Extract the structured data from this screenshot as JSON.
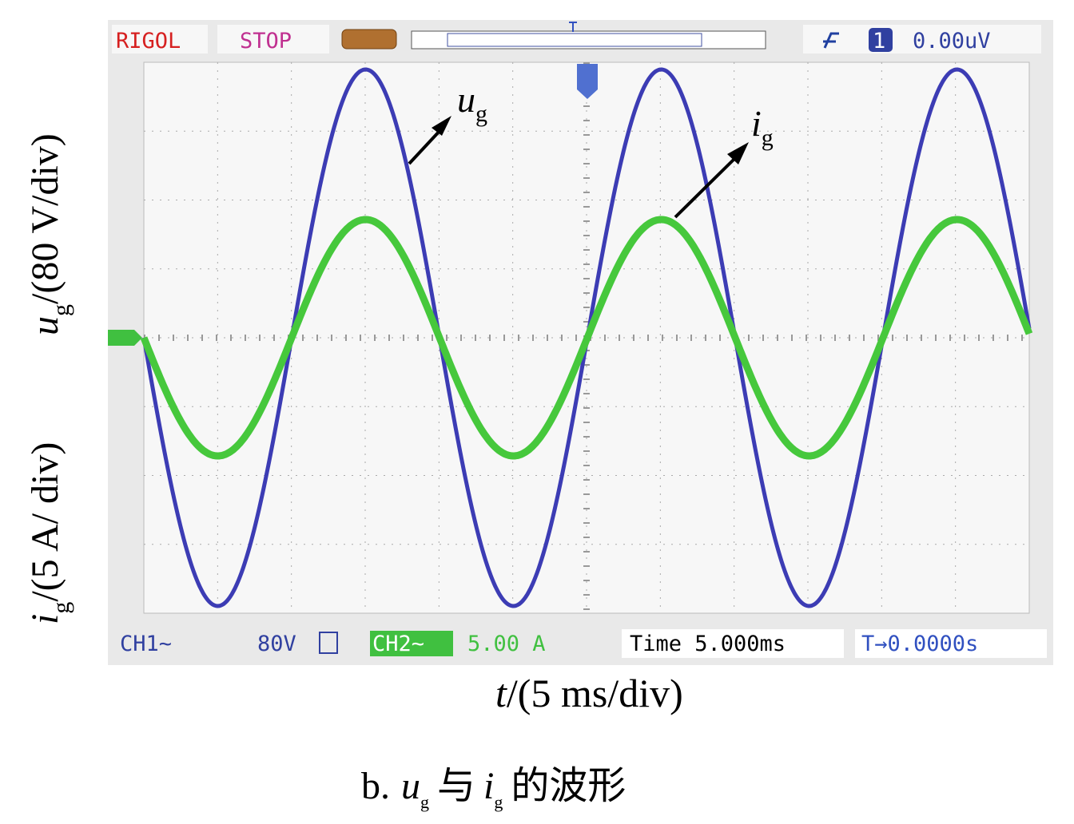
{
  "screen": {
    "header": {
      "brand": "RIGOL",
      "status": "STOP",
      "trigger_channel": "1",
      "trigger_level": "0.00uV"
    },
    "footer": {
      "ch1": "CH1~",
      "ch1_scale": "80V",
      "ch2": "CH2~",
      "ch2_scale": "5.00 A",
      "time": "Time 5.000ms",
      "offset": "T→0.0000s"
    },
    "annotations": [
      {
        "var": "u",
        "sub": "g"
      },
      {
        "var": "i",
        "sub": "g"
      }
    ]
  },
  "axes": {
    "y_upper": {
      "var": "u",
      "sub": "g",
      "rest": "/(80 V/div)"
    },
    "y_lower": {
      "var": "i",
      "sub": "g",
      "rest": "/(5 A/ div)"
    },
    "x": {
      "var": "t",
      "rest": "/(5 ms/div)"
    }
  },
  "caption": {
    "prefix": "b.",
    "var1": "u",
    "sub1": "g",
    "mid": "与",
    "var2": "i",
    "sub2": "g",
    "suffix": "的波形"
  }
}
